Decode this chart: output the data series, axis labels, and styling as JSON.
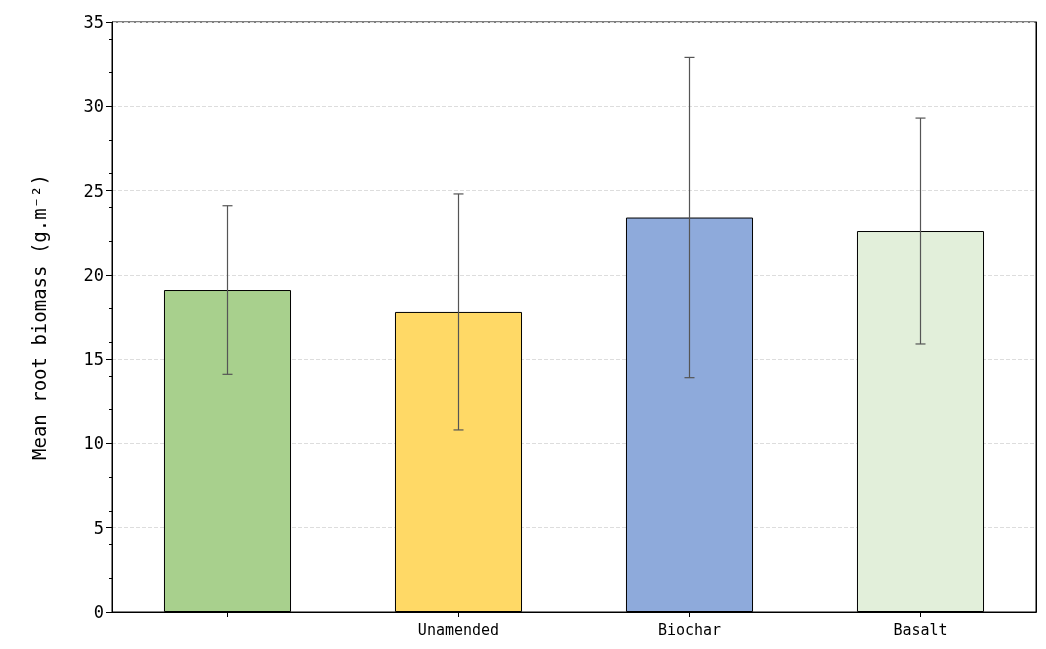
{
  "chart_data": {
    "type": "bar",
    "ylabel": "Mean root biomass (g.m⁻²)",
    "categories": [
      null,
      "Unamended",
      "Biochar",
      "Basalt"
    ],
    "values": [
      19.1,
      17.8,
      23.4,
      22.6
    ],
    "errors": [
      5.0,
      7.0,
      9.5,
      6.7
    ],
    "colors": [
      "#a8d08d",
      "#ffd966",
      "#8eaadb",
      "#e2efda"
    ],
    "ylim": [
      0,
      35
    ],
    "yticks": [
      0,
      5,
      10,
      15,
      20,
      25,
      30,
      35
    ],
    "grid": "y"
  }
}
